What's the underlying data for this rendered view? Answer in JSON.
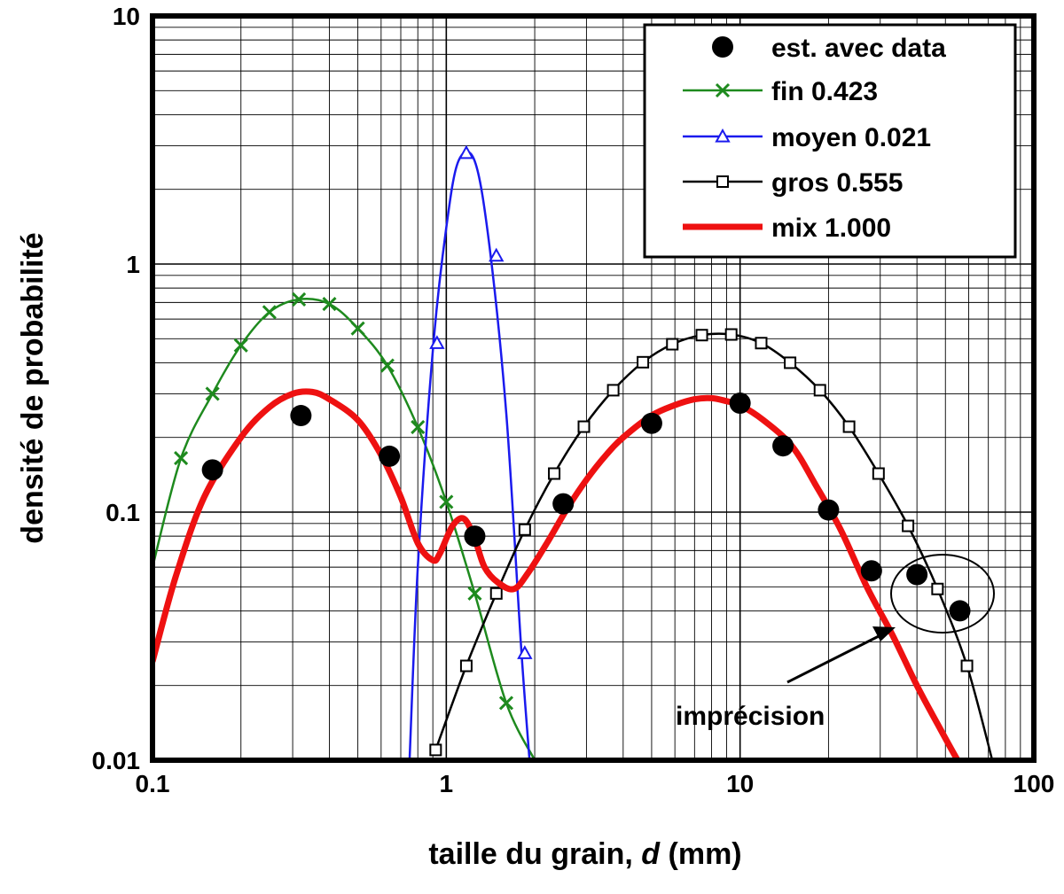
{
  "chart_data": {
    "type": "line",
    "xscale": "log",
    "yscale": "log",
    "xlim": [
      0.1,
      100
    ],
    "ylim": [
      0.01,
      10
    ],
    "grid": true,
    "legend_position": "top-right",
    "xlabel_text": "taille du grain, ",
    "xlabel_var": "d",
    "xlabel_unit": " (mm)",
    "ylabel": "densité de probabilité",
    "x_tick_labels": [
      "0.1",
      "1",
      "10",
      "100"
    ],
    "y_tick_labels": [
      "0.01",
      "0.1",
      "1",
      "10"
    ],
    "annotation": "imprécision",
    "series": [
      {
        "name": "est. avec data",
        "marker": "filled-circle",
        "color": "#000000",
        "x": [
          0.16,
          0.32,
          0.64,
          1.25,
          2.5,
          5,
          10,
          14,
          20,
          28,
          40,
          56
        ],
        "y": [
          0.148,
          0.245,
          0.168,
          0.08,
          0.108,
          0.228,
          0.275,
          0.185,
          0.102,
          0.058,
          0.056,
          0.04
        ]
      },
      {
        "name": "fin 0.423",
        "marker": "x",
        "color": "#1e8a1e",
        "x": [
          0.1,
          0.125,
          0.16,
          0.2,
          0.25,
          0.315,
          0.4,
          0.5,
          0.63,
          0.8,
          1.0,
          1.25,
          1.6,
          2.0
        ],
        "y": [
          0.06,
          0.165,
          0.3,
          0.47,
          0.64,
          0.72,
          0.69,
          0.55,
          0.39,
          0.22,
          0.11,
          0.047,
          0.017,
          0.01
        ],
        "marker_x": [
          0.125,
          0.16,
          0.2,
          0.25,
          0.315,
          0.4,
          0.5,
          0.63,
          0.8,
          1.0,
          1.25,
          1.6
        ],
        "marker_y": [
          0.165,
          0.3,
          0.47,
          0.64,
          0.72,
          0.69,
          0.55,
          0.39,
          0.22,
          0.11,
          0.047,
          0.017
        ]
      },
      {
        "name": "moyen 0.021",
        "marker": "open-triangle",
        "color": "#1a1aee",
        "x": [
          0.75,
          0.8,
          0.9,
          1.0,
          1.1,
          1.25,
          1.4,
          1.6,
          1.8,
          1.92
        ],
        "y": [
          0.01,
          0.06,
          0.45,
          1.4,
          2.6,
          2.6,
          1.2,
          0.25,
          0.028,
          0.01
        ],
        "marker_x": [
          0.93,
          1.17,
          1.48,
          1.85
        ],
        "marker_y": [
          0.48,
          2.8,
          1.08,
          0.027
        ]
      },
      {
        "name": "gros 0.555",
        "marker": "open-square",
        "color": "#000000",
        "x": [
          0.92,
          1.17,
          1.48,
          1.85,
          2.33,
          2.94,
          3.7,
          4.67,
          5.88,
          7.41,
          9.33,
          11.8,
          14.8,
          18.7,
          23.5,
          29.6,
          37.3,
          47,
          59.2,
          73
        ],
        "y": [
          0.011,
          0.024,
          0.047,
          0.085,
          0.143,
          0.221,
          0.31,
          0.402,
          0.475,
          0.517,
          0.52,
          0.48,
          0.4,
          0.31,
          0.221,
          0.143,
          0.088,
          0.049,
          0.024,
          0.0095
        ],
        "marker_x": [
          0.92,
          1.17,
          1.48,
          1.85,
          2.33,
          2.94,
          3.7,
          4.67,
          5.88,
          7.41,
          9.33,
          11.8,
          14.8,
          18.7,
          23.5,
          29.6,
          37.3,
          47,
          59.2,
          73
        ],
        "marker_y": [
          0.011,
          0.024,
          0.047,
          0.085,
          0.143,
          0.221,
          0.31,
          0.402,
          0.475,
          0.517,
          0.52,
          0.48,
          0.4,
          0.31,
          0.221,
          0.143,
          0.088,
          0.049,
          0.024,
          0.0095
        ]
      },
      {
        "name": "mix 1.000",
        "marker": "none",
        "color": "#ee1111",
        "x": [
          0.1,
          0.12,
          0.15,
          0.2,
          0.25,
          0.3,
          0.35,
          0.4,
          0.5,
          0.6,
          0.7,
          0.8,
          0.9,
          0.95,
          1.05,
          1.15,
          1.25,
          1.35,
          1.5,
          1.7,
          1.9,
          2.2,
          2.6,
          3.0,
          3.5,
          4.0,
          5.0,
          6.0,
          7.0,
          8.0,
          9.0,
          10.0,
          12,
          15,
          18,
          22,
          27,
          33,
          40,
          47,
          55,
          60
        ],
        "y": [
          0.025,
          0.055,
          0.115,
          0.2,
          0.265,
          0.3,
          0.305,
          0.285,
          0.235,
          0.17,
          0.115,
          0.075,
          0.064,
          0.068,
          0.088,
          0.094,
          0.078,
          0.06,
          0.052,
          0.049,
          0.057,
          0.075,
          0.105,
          0.135,
          0.17,
          0.2,
          0.245,
          0.27,
          0.285,
          0.288,
          0.28,
          0.27,
          0.235,
          0.185,
          0.13,
          0.085,
          0.05,
          0.032,
          0.02,
          0.014,
          0.01,
          0.0085
        ]
      }
    ]
  }
}
